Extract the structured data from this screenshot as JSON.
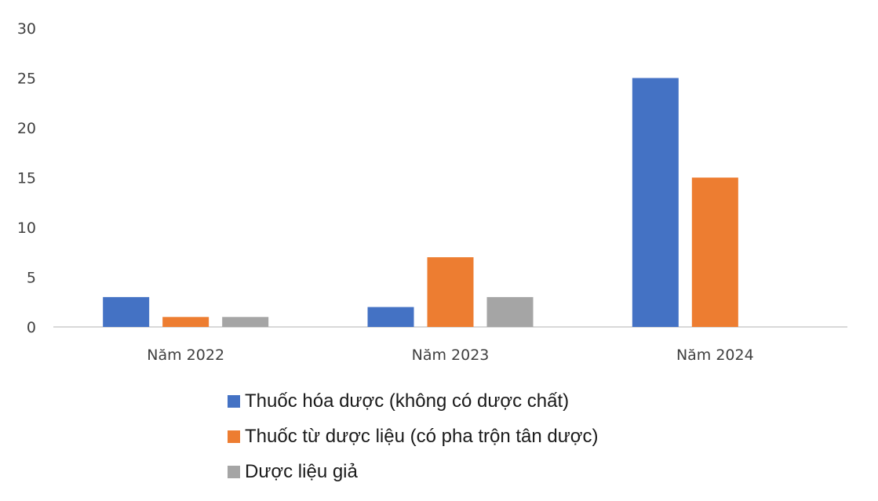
{
  "chart_data": {
    "type": "bar",
    "title": "",
    "xlabel": "",
    "ylabel": "",
    "categories": [
      "Năm 2022",
      "Năm 2023",
      "Năm 2024"
    ],
    "ylim": [
      0,
      30
    ],
    "yticks": [
      0,
      5,
      10,
      15,
      20,
      25,
      30
    ],
    "grid": false,
    "legend_position": "bottom",
    "series": [
      {
        "name": "Thuốc hóa dược (không có dược chất)",
        "color": "#4472C4",
        "values": [
          3,
          2,
          25
        ]
      },
      {
        "name": "Thuốc từ dược liệu (có pha trộn tân dược)",
        "color": "#ED7D31",
        "values": [
          1,
          7,
          15
        ]
      },
      {
        "name": "Dược liệu giả",
        "color": "#A5A5A5",
        "values": [
          1,
          3,
          0
        ]
      }
    ]
  }
}
